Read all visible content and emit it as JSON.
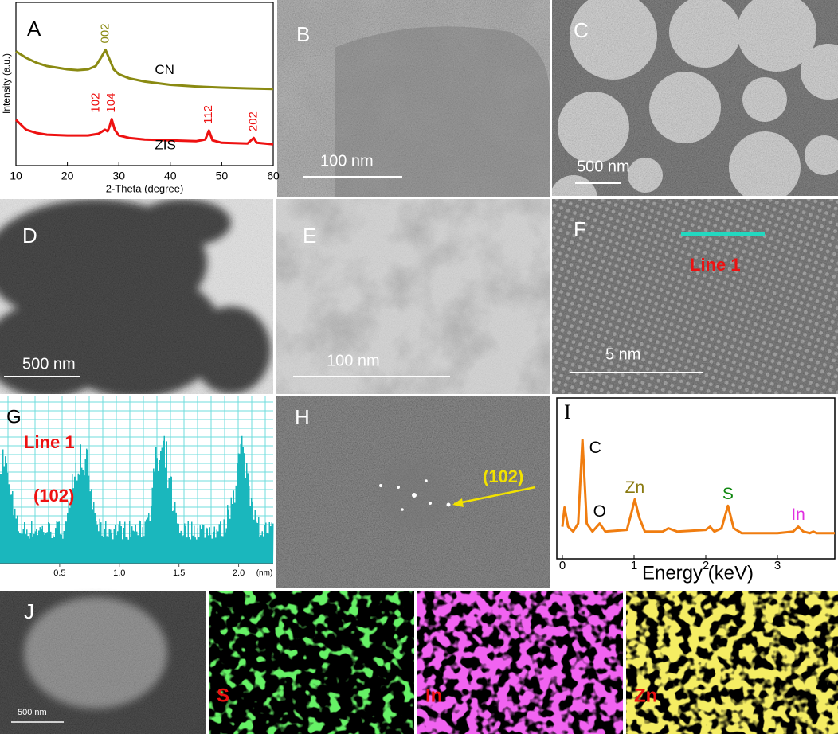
{
  "panels": {
    "A": {
      "label": "A",
      "y_label": "Intensity (a.u.)",
      "x_label": "2-Theta (degree)",
      "xlim": [
        10,
        60
      ],
      "xticks": [
        10,
        20,
        30,
        40,
        50,
        60
      ],
      "ylim": [
        0,
        100
      ],
      "series": [
        {
          "name": "CN",
          "color": "#8a8a12",
          "x": [
            10,
            12,
            14,
            16,
            18,
            20,
            22,
            24,
            25.5,
            26.5,
            27.4,
            28.2,
            29,
            30,
            32,
            35,
            40,
            45,
            50,
            55,
            60
          ],
          "values": [
            70,
            66,
            63,
            61,
            60,
            59,
            58.5,
            59,
            61,
            66,
            71,
            65,
            59,
            56,
            53.5,
            51.5,
            49.5,
            48.5,
            47.8,
            47.3,
            47
          ],
          "peaks": [
            {
              "two_theta": 27.4,
              "hkl": "002"
            }
          ]
        },
        {
          "name": "ZIS",
          "color": "#ee1111",
          "x": [
            10,
            11,
            12,
            14,
            16,
            20,
            24,
            26,
            27.3,
            27.8,
            28.2,
            28.6,
            29.2,
            30,
            32,
            35,
            40,
            45,
            46.8,
            47.5,
            48.2,
            50,
            55,
            55.7,
            56.2,
            56.8,
            60
          ],
          "values": [
            28,
            25,
            22,
            20,
            19,
            18.5,
            18.5,
            19.5,
            22,
            21,
            24,
            28.5,
            22,
            18.5,
            17,
            16,
            15.5,
            15,
            16,
            21.5,
            15.5,
            14,
            13.5,
            15.5,
            17,
            14,
            13
          ],
          "peaks": [
            {
              "two_theta": 27.7,
              "hkl": "102"
            },
            {
              "two_theta": 28.6,
              "hkl": "104"
            },
            {
              "two_theta": 47.5,
              "hkl": "112"
            },
            {
              "two_theta": 56.2,
              "hkl": "202"
            }
          ]
        }
      ]
    },
    "B": {
      "label": "B",
      "scale_bar": "100 nm"
    },
    "C": {
      "label": "C",
      "scale_bar": "500 nm"
    },
    "D": {
      "label": "D",
      "scale_bar": "500 nm"
    },
    "E": {
      "label": "E",
      "scale_bar": "100 nm"
    },
    "F": {
      "label": "F",
      "line_label": "Line 1",
      "scale_bar": "5 nm"
    },
    "G": {
      "label": "G",
      "line_label": "Line 1",
      "plane": "(102)",
      "x_unit": "(nm)",
      "xlim": [
        0,
        2.29
      ],
      "xticks": [
        0.5,
        {
          "value": 1,
          "label": "1.0"
        },
        1.5,
        {
          "value": 2,
          "label": "2.0"
        }
      ]
    },
    "H": {
      "label": "H",
      "plane": "(102)"
    },
    "I": {
      "label": "I",
      "x_label": "Energy (keV)",
      "xlim": [
        0,
        3.8
      ],
      "xticks": [
        0,
        1,
        2,
        3
      ],
      "ylim": [
        0,
        100
      ],
      "color": "#f07d10",
      "x": [
        0,
        0.03,
        0.08,
        0.15,
        0.22,
        0.28,
        0.34,
        0.42,
        0.52,
        0.6,
        0.9,
        0.96,
        1.01,
        1.07,
        1.15,
        1.4,
        1.48,
        1.6,
        2.0,
        2.06,
        2.12,
        2.22,
        2.31,
        2.39,
        2.5,
        3.0,
        3.22,
        3.29,
        3.36,
        3.45,
        3.5,
        3.55,
        3.8
      ],
      "values": [
        20,
        32,
        20,
        17,
        22,
        74,
        22,
        17,
        22,
        17,
        18,
        28,
        37,
        26,
        17,
        17,
        19,
        17,
        18,
        20,
        17,
        19,
        33,
        19,
        16,
        16,
        17,
        20,
        17,
        16,
        17,
        16,
        16
      ],
      "elements": [
        {
          "element": "C",
          "energy": 0.28,
          "color": "#000000"
        },
        {
          "element": "O",
          "energy": 0.52,
          "color": "#000000"
        },
        {
          "element": "Zn",
          "energy": 1.01,
          "color": "#8a7a10"
        },
        {
          "element": "S",
          "energy": 2.31,
          "color": "#118811"
        },
        {
          "element": "In",
          "energy": 3.29,
          "color": "#e030e0"
        }
      ]
    },
    "J": {
      "label": "J",
      "scale_bar": "500 nm",
      "maps": [
        {
          "element": "S",
          "color": "#22e022"
        },
        {
          "element": "In",
          "color": "#e020e0"
        },
        {
          "element": "Zn",
          "color": "#e8d820"
        }
      ]
    }
  }
}
